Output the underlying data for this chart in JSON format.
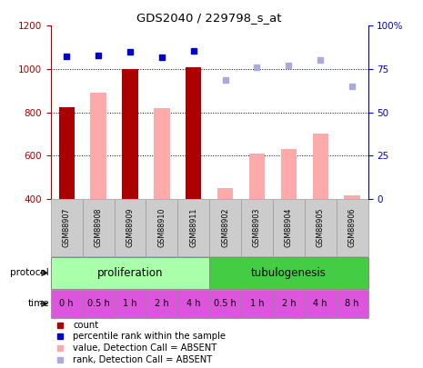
{
  "title": "GDS2040 / 229798_s_at",
  "samples": [
    "GSM88907",
    "GSM88908",
    "GSM88909",
    "GSM88910",
    "GSM88911",
    "GSM88902",
    "GSM88903",
    "GSM88904",
    "GSM88905",
    "GSM88906"
  ],
  "time_labels": [
    "0 h",
    "0.5 h",
    "1 h",
    "2 h",
    "4 h",
    "0.5 h",
    "1 h",
    "2 h",
    "4 h",
    "8 h"
  ],
  "protocol_labels": [
    "proliferation",
    "tubulogenesis"
  ],
  "count_values": [
    825,
    null,
    1000,
    null,
    1010,
    null,
    null,
    null,
    null,
    null
  ],
  "rank_values": [
    1060,
    1065,
    1080,
    1055,
    1085,
    null,
    null,
    null,
    null,
    null
  ],
  "absent_value": [
    null,
    890,
    null,
    820,
    null,
    450,
    608,
    632,
    700,
    415
  ],
  "absent_rank": [
    null,
    null,
    null,
    null,
    null,
    950,
    1010,
    1015,
    1040,
    920
  ],
  "ylim_left": [
    400,
    1200
  ],
  "ylim_right": [
    0,
    100
  ],
  "yticks_left": [
    400,
    600,
    800,
    1000,
    1200
  ],
  "ytick_labels_left": [
    "400",
    "600",
    "800",
    "1000",
    "1200"
  ],
  "yticks_right": [
    0,
    25,
    50,
    75,
    100
  ],
  "ytick_labels_right": [
    "0",
    "25",
    "50",
    "75",
    "100%"
  ],
  "grid_values": [
    600,
    800,
    1000
  ],
  "color_dark_red": "#aa0000",
  "color_pink": "#ffaaaa",
  "color_blue": "#0000cc",
  "color_light_blue": "#aaaadd",
  "color_protocol_prolif": "#aaffaa",
  "color_protocol_tubulo": "#44cc44",
  "color_time_box": "#dd55dd",
  "color_sample_box": "#cccccc",
  "legend_items": [
    "count",
    "percentile rank within the sample",
    "value, Detection Call = ABSENT",
    "rank, Detection Call = ABSENT"
  ],
  "bar_width": 0.5
}
